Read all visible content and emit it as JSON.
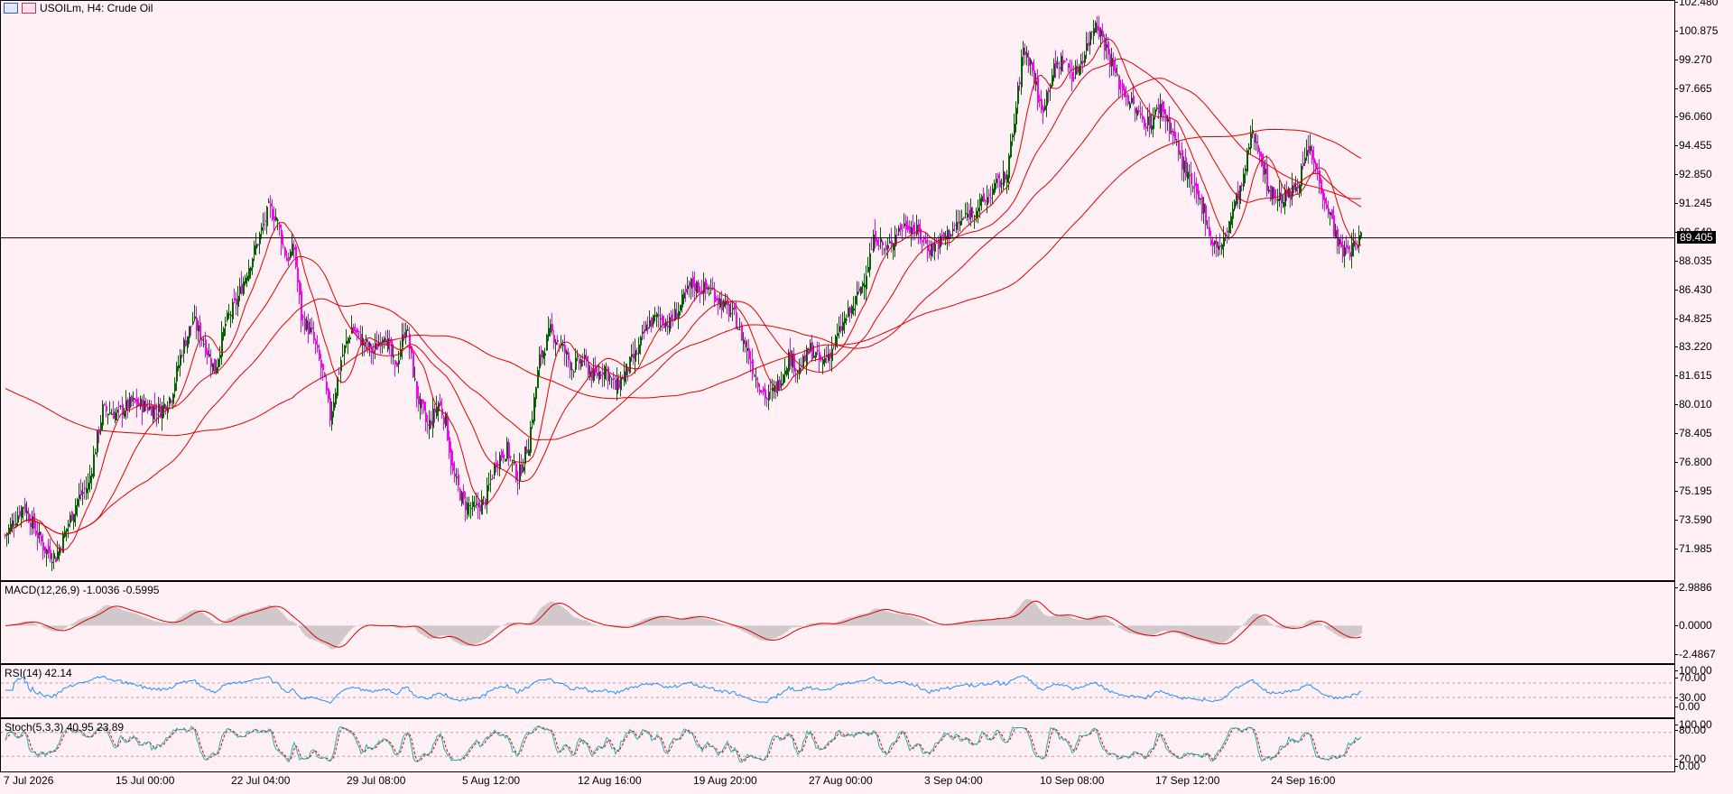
{
  "header": {
    "symbol_title": "USOILm, H4:  Crude Oil"
  },
  "main_chart": {
    "price_ticks": [
      "102.480",
      "100.875",
      "99.270",
      "97.665",
      "96.060",
      "94.455",
      "92.850",
      "91.245",
      "89.640",
      "88.035",
      "86.430",
      "84.825",
      "83.220",
      "81.615",
      "80.010",
      "78.405",
      "76.800",
      "75.195",
      "73.590",
      "71.985"
    ],
    "current_price_label": "89.405",
    "current_price": 89.405,
    "ylim": [
      70.5,
      102.48
    ]
  },
  "time_axis": [
    "7 Jul 2026",
    "15 Jul 00:00",
    "22 Jul 04:00",
    "29 Jul 08:00",
    "5 Aug 12:00",
    "12 Aug 16:00",
    "19 Aug 20:00",
    "27 Aug 00:00",
    "3 Sep 04:00",
    "10 Sep 08:00",
    "17 Sep 12:00",
    "24 Sep 16:00"
  ],
  "indicators": {
    "macd": {
      "label": "MACD(12,26,9) -1.0036 -0.5995",
      "ticks": [
        "2.9886",
        "0.0000",
        "-2.4867"
      ]
    },
    "rsi": {
      "label": "RSI(14) 42.14",
      "ticks": [
        "100.00",
        "70.00",
        "30.00",
        "0.00"
      ]
    },
    "stoch": {
      "label": "Stoch(5,3,3) 40.95 23.89",
      "ticks": [
        "100.00",
        "80.00",
        "20.00",
        "0.00"
      ]
    }
  },
  "colors": {
    "background": "#fff0f5",
    "bull_candle": "#006400",
    "bear_candle": "#ff00ff",
    "moving_average": "#e00000",
    "macd_histogram": "#a0a0a0",
    "macd_signal": "#e00000",
    "rsi_line": "#1e90ff",
    "stoch_main": "#20b2aa",
    "stoch_signal": "#e00000"
  },
  "chart_data": {
    "type": "candlestick",
    "title": "USOILm, H4:  Crude Oil",
    "timeframe": "H4",
    "ylim": [
      70.5,
      102.48
    ],
    "close_path": [
      [
        0,
        72.8
      ],
      [
        10,
        74.5
      ],
      [
        22,
        72.0
      ],
      [
        28,
        71.6
      ],
      [
        34,
        73.2
      ],
      [
        40,
        74.8
      ],
      [
        46,
        75.6
      ],
      [
        54,
        79.8
      ],
      [
        62,
        79.6
      ],
      [
        70,
        80.2
      ],
      [
        78,
        80.0
      ],
      [
        86,
        79.8
      ],
      [
        92,
        80.6
      ],
      [
        98,
        83.2
      ],
      [
        104,
        84.8
      ],
      [
        110,
        83.6
      ],
      [
        116,
        82.0
      ],
      [
        122,
        84.6
      ],
      [
        128,
        85.8
      ],
      [
        134,
        87.6
      ],
      [
        140,
        89.2
      ],
      [
        146,
        91.0
      ],
      [
        150,
        90.6
      ],
      [
        156,
        88.2
      ],
      [
        160,
        88.8
      ],
      [
        164,
        85.0
      ],
      [
        170,
        84.0
      ],
      [
        176,
        81.8
      ],
      [
        180,
        79.4
      ],
      [
        186,
        82.6
      ],
      [
        192,
        84.4
      ],
      [
        198,
        83.6
      ],
      [
        204,
        83.0
      ],
      [
        210,
        84.2
      ],
      [
        216,
        82.0
      ],
      [
        222,
        84.6
      ],
      [
        228,
        80.6
      ],
      [
        234,
        78.8
      ],
      [
        240,
        80.2
      ],
      [
        244,
        79.2
      ],
      [
        248,
        76.2
      ],
      [
        254,
        74.6
      ],
      [
        260,
        74.2
      ],
      [
        266,
        74.8
      ],
      [
        272,
        77.0
      ],
      [
        278,
        77.6
      ],
      [
        284,
        76.0
      ],
      [
        290,
        78.0
      ],
      [
        296,
        82.6
      ],
      [
        302,
        84.2
      ],
      [
        308,
        83.4
      ],
      [
        314,
        82.2
      ],
      [
        320,
        82.6
      ],
      [
        326,
        81.6
      ],
      [
        332,
        82.2
      ],
      [
        338,
        81.0
      ],
      [
        344,
        82.0
      ],
      [
        350,
        83.0
      ],
      [
        356,
        84.6
      ],
      [
        362,
        85.0
      ],
      [
        368,
        84.6
      ],
      [
        374,
        85.6
      ],
      [
        380,
        86.8
      ],
      [
        386,
        86.6
      ],
      [
        392,
        86.4
      ],
      [
        398,
        85.6
      ],
      [
        404,
        85.0
      ],
      [
        410,
        83.4
      ],
      [
        416,
        81.6
      ],
      [
        422,
        80.4
      ],
      [
        428,
        81.2
      ],
      [
        434,
        82.8
      ],
      [
        440,
        82.0
      ],
      [
        446,
        83.2
      ],
      [
        452,
        82.4
      ],
      [
        458,
        83.2
      ],
      [
        464,
        84.6
      ],
      [
        470,
        85.6
      ],
      [
        476,
        87.2
      ],
      [
        482,
        89.6
      ],
      [
        488,
        88.6
      ],
      [
        494,
        89.8
      ],
      [
        500,
        90.2
      ],
      [
        506,
        89.6
      ],
      [
        512,
        88.8
      ],
      [
        518,
        89.2
      ],
      [
        524,
        89.8
      ],
      [
        530,
        90.4
      ],
      [
        536,
        91.0
      ],
      [
        542,
        91.4
      ],
      [
        548,
        92.2
      ],
      [
        554,
        92.8
      ],
      [
        558,
        95.0
      ],
      [
        564,
        100.0
      ],
      [
        568,
        99.2
      ],
      [
        574,
        96.4
      ],
      [
        580,
        98.6
      ],
      [
        586,
        99.4
      ],
      [
        592,
        98.4
      ],
      [
        598,
        99.8
      ],
      [
        604,
        101.6
      ],
      [
        610,
        100.0
      ],
      [
        616,
        98.2
      ],
      [
        622,
        97.2
      ],
      [
        628,
        96.2
      ],
      [
        634,
        95.8
      ],
      [
        640,
        96.8
      ],
      [
        646,
        95.4
      ],
      [
        652,
        93.6
      ],
      [
        658,
        92.0
      ],
      [
        664,
        91.0
      ],
      [
        668,
        89.2
      ],
      [
        674,
        88.8
      ],
      [
        680,
        91.0
      ],
      [
        686,
        92.6
      ],
      [
        690,
        95.2
      ],
      [
        694,
        94.6
      ],
      [
        700,
        92.0
      ],
      [
        706,
        91.6
      ],
      [
        712,
        91.8
      ],
      [
        718,
        93.0
      ],
      [
        722,
        94.4
      ],
      [
        728,
        92.6
      ],
      [
        734,
        90.6
      ],
      [
        740,
        88.6
      ],
      [
        746,
        88.8
      ],
      [
        751,
        89.4
      ]
    ],
    "indicators": [
      "MACD(12,26,9)",
      "RSI(14)",
      "Stoch(5,3,3)"
    ],
    "indicator_values": {
      "macd_main": -1.0036,
      "macd_signal": -0.5995,
      "rsi": 42.14,
      "stoch_k": 40.95,
      "stoch_d": 23.89
    },
    "macd_range": [
      -2.4867,
      2.9886
    ],
    "rsi_range": [
      0,
      100
    ],
    "stoch_range": [
      0,
      100
    ],
    "grid": false,
    "legend": "top-left"
  }
}
